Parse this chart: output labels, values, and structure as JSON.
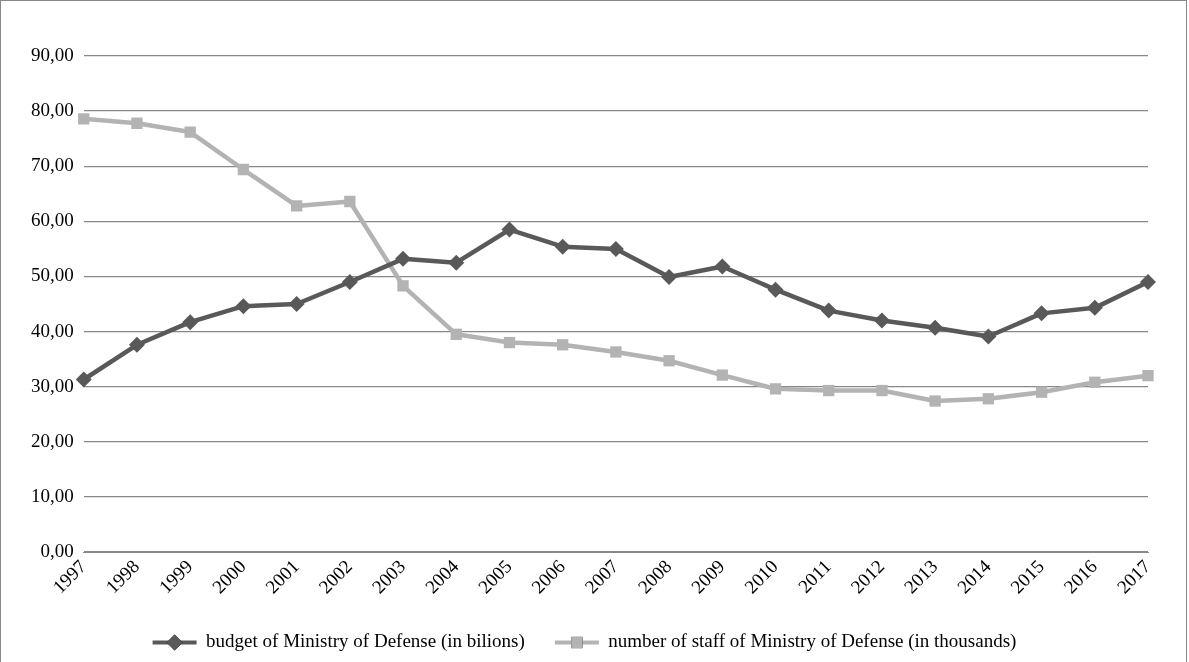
{
  "chart_data": {
    "type": "line",
    "categories": [
      "1997",
      "1998",
      "1999",
      "2000",
      "2001",
      "2002",
      "2003",
      "2004",
      "2005",
      "2006",
      "2007",
      "2008",
      "2009",
      "2010",
      "2011",
      "2012",
      "2013",
      "2014",
      "2015",
      "2016",
      "2017"
    ],
    "series": [
      {
        "name": "budget of Ministry of Defense (in bilions)",
        "color": "#595959",
        "marker": "diamond",
        "values": [
          31.3,
          37.6,
          41.7,
          44.6,
          45.0,
          49.0,
          53.2,
          52.5,
          58.5,
          55.4,
          55.0,
          49.9,
          51.8,
          47.6,
          43.8,
          42.0,
          40.7,
          39.1,
          43.3,
          44.3,
          49.0
        ]
      },
      {
        "name": "number of staff of Ministry of Defense (in thousands)",
        "color": "#b3b3b3",
        "marker": "square",
        "values": [
          78.6,
          77.8,
          76.2,
          69.4,
          62.8,
          63.6,
          48.3,
          39.5,
          38.0,
          37.6,
          36.3,
          34.7,
          32.1,
          29.6,
          29.3,
          29.3,
          27.4,
          27.8,
          29.0,
          30.8,
          32.0
        ]
      }
    ],
    "ylim": [
      0,
      90
    ],
    "yticks": [
      {
        "value": 0,
        "label": "0,00"
      },
      {
        "value": 10,
        "label": "10,00"
      },
      {
        "value": 20,
        "label": "20,00"
      },
      {
        "value": 30,
        "label": "30,00"
      },
      {
        "value": 40,
        "label": "40,00"
      },
      {
        "value": 50,
        "label": "50,00"
      },
      {
        "value": 60,
        "label": "60,00"
      },
      {
        "value": 70,
        "label": "70,00"
      },
      {
        "value": 80,
        "label": "80,00"
      },
      {
        "value": 90,
        "label": "90,00"
      }
    ],
    "grid": "y",
    "legend": "bottom",
    "line_style": "solid"
  }
}
